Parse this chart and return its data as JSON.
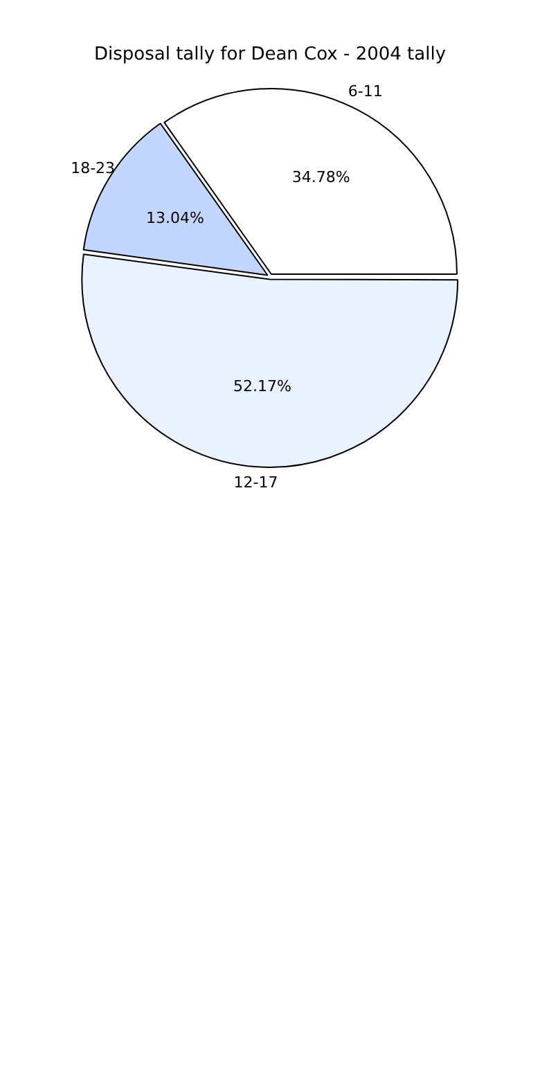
{
  "chart_data": {
    "type": "pie",
    "title": "Disposal tally for Dean Cox - 2004 tally",
    "categories": [
      "6-11",
      "12-17",
      "18-23"
    ],
    "values": [
      34.78,
      52.17,
      13.04
    ],
    "value_labels": [
      "34.78%",
      "52.17%",
      "13.04%"
    ],
    "colors": [
      "#ffffff",
      "#eaf1ff",
      "#c2d6ff"
    ],
    "legend": false
  }
}
